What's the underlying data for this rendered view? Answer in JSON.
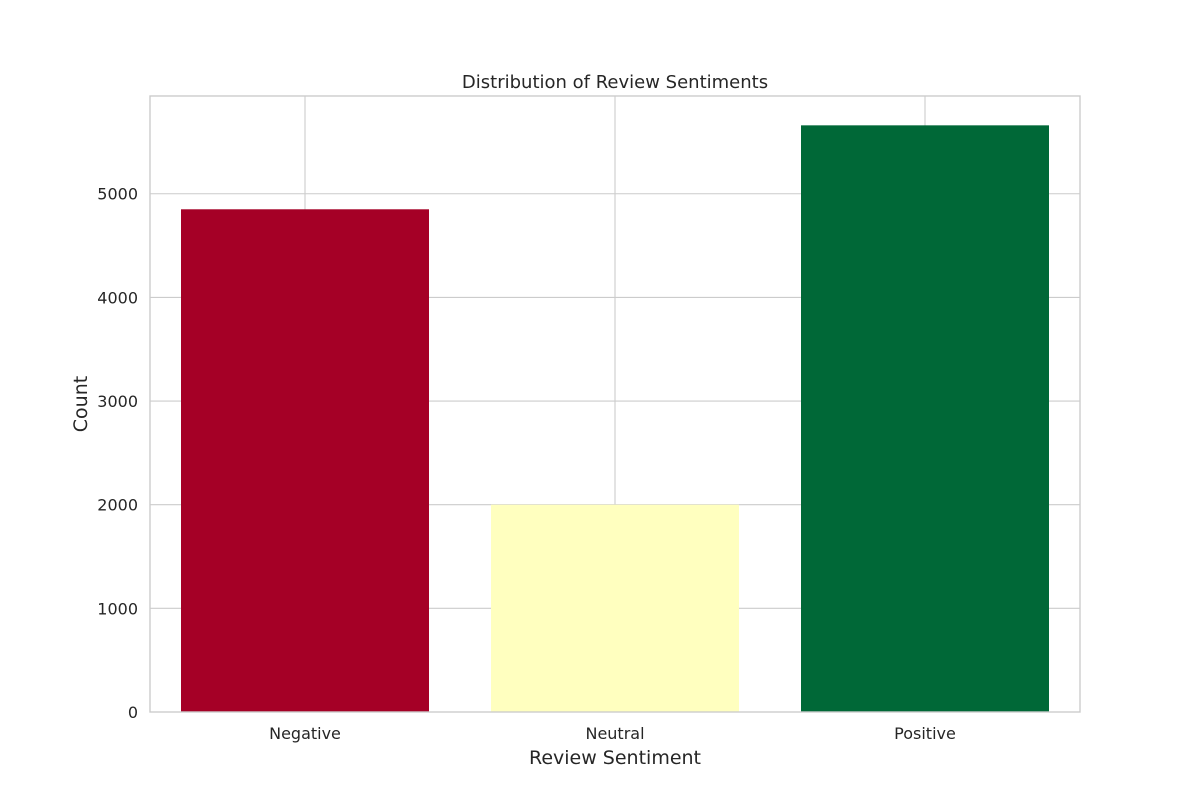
{
  "chart_data": {
    "type": "bar",
    "title": "Distribution of Review Sentiments",
    "xlabel": "Review Sentiment",
    "ylabel": "Count",
    "categories": [
      "Negative",
      "Neutral",
      "Positive"
    ],
    "values": [
      4850,
      2000,
      5660
    ],
    "colors": [
      "#a50026",
      "#ffffbf",
      "#006837"
    ],
    "ylim": [
      0,
      5943
    ],
    "yticks": [
      0,
      1000,
      2000,
      3000,
      4000,
      5000
    ],
    "grid": true,
    "legend": "none"
  }
}
